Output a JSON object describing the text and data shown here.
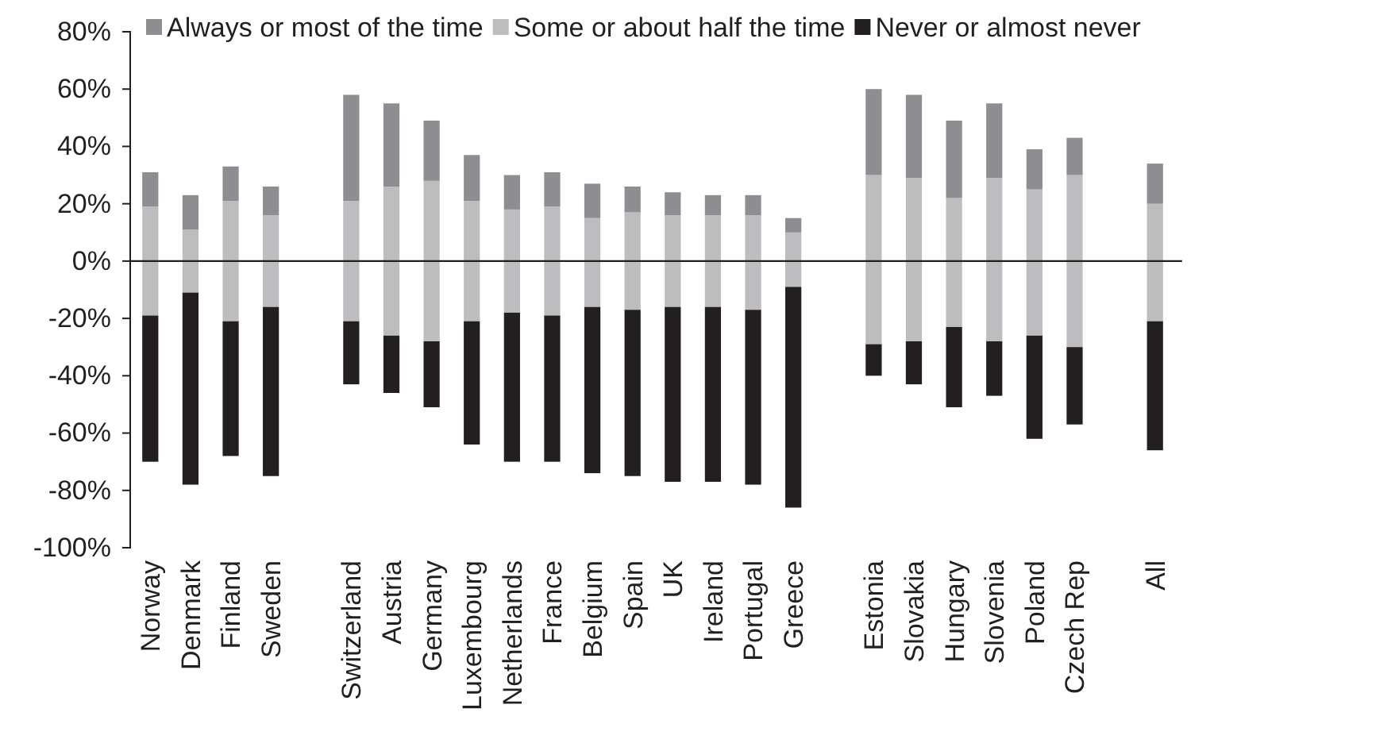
{
  "chart_data": {
    "type": "bar",
    "stacked": true,
    "categories": [
      "Norway",
      "Denmark",
      "Finland",
      "Sweden",
      null,
      "Switzerland",
      "Austria",
      "Germany",
      "Luxembourg",
      "Netherlands",
      "France",
      "Belgium",
      "Spain",
      "UK",
      "Ireland",
      "Portugal",
      "Greece",
      null,
      "Estonia",
      "Slovakia",
      "Hungary",
      "Slovenia",
      "Poland",
      "Czech Rep",
      null,
      "All"
    ],
    "series": [
      {
        "name": "Some or about half the time",
        "color": "#bdbdc0",
        "values": [
          19,
          11,
          21,
          16,
          null,
          21,
          26,
          28,
          21,
          18,
          19,
          15,
          17,
          16,
          16,
          16,
          10,
          null,
          30,
          29,
          22,
          29,
          25,
          30,
          null,
          20
        ]
      },
      {
        "color": "#bdbdc0",
        "values": [
          -19,
          -11,
          -21,
          -16,
          null,
          -21,
          -26,
          -28,
          -21,
          -18,
          -19,
          -16,
          -17,
          -16,
          -16,
          -17,
          -9,
          null,
          -29,
          -28,
          -23,
          -28,
          -26,
          -30,
          null,
          -21
        ]
      },
      {
        "name": "Always or most of the time",
        "color": "#8e8e92",
        "values": [
          12,
          12,
          12,
          10,
          null,
          37,
          29,
          21,
          16,
          12,
          12,
          12,
          9,
          8,
          7,
          7,
          5,
          null,
          30,
          29,
          27,
          26,
          14,
          13,
          null,
          14
        ]
      },
      {
        "name": "Never or almost never",
        "color": "#231f20",
        "values": [
          -51,
          -67,
          -47,
          -59,
          null,
          -22,
          -20,
          -23,
          -43,
          -52,
          -51,
          -58,
          -58,
          -61,
          -61,
          -61,
          -77,
          null,
          -11,
          -15,
          -28,
          -19,
          -36,
          -27,
          null,
          -45
        ]
      }
    ],
    "ylim": [
      -100,
      80
    ],
    "yticks": [
      {
        "value": -100,
        "label": "-100%"
      },
      {
        "value": -80,
        "label": "-80%"
      },
      {
        "value": -60,
        "label": "-60%"
      },
      {
        "value": -40,
        "label": "-40%"
      },
      {
        "value": -20,
        "label": "-20%"
      },
      {
        "value": 0,
        "label": "0%"
      },
      {
        "value": 20,
        "label": "20%"
      },
      {
        "value": 40,
        "label": "40%"
      },
      {
        "value": 60,
        "label": "60%"
      },
      {
        "value": 80,
        "label": "80%"
      }
    ],
    "ref_lines": [
      {
        "axis": "y",
        "value": 0
      }
    ],
    "legend": "top"
  }
}
